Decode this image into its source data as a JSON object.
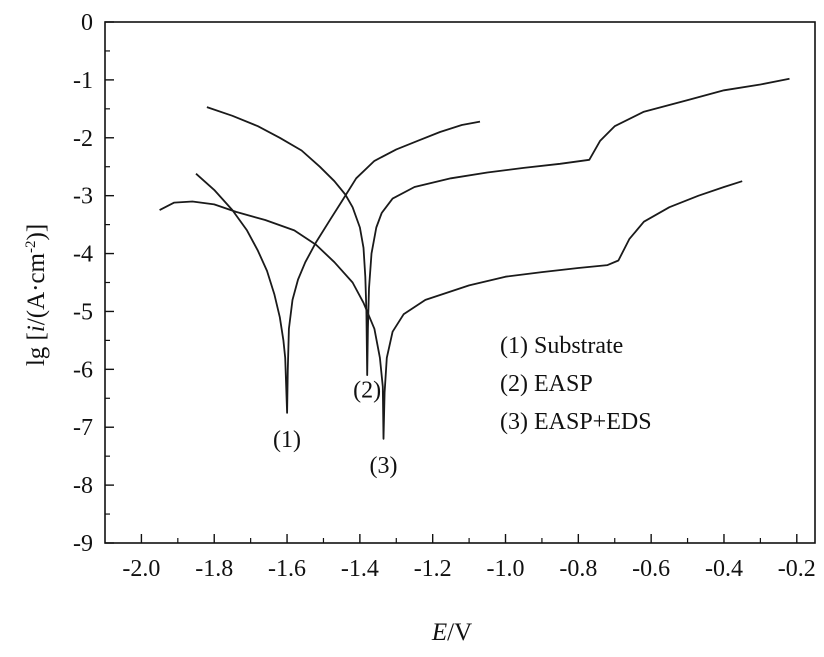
{
  "chart_data": {
    "type": "line",
    "xlabel_italic": "E",
    "xlabel_rest": "/V",
    "ylabel_pre": "lg [",
    "ylabel_italic": "i",
    "ylabel_mid": "/(A·cm",
    "ylabel_sup": "-2",
    "ylabel_post": ")]",
    "xlim": [
      -2.1,
      -0.15
    ],
    "ylim": [
      -9,
      0
    ],
    "xticks": [
      {
        "value": -2.0,
        "label": "-2.0"
      },
      {
        "value": -1.8,
        "label": "-1.8"
      },
      {
        "value": -1.6,
        "label": "-1.6"
      },
      {
        "value": -1.4,
        "label": "-1.4"
      },
      {
        "value": -1.2,
        "label": "-1.2"
      },
      {
        "value": -1.0,
        "label": "-1.0"
      },
      {
        "value": -0.8,
        "label": "-0.8"
      },
      {
        "value": -0.6,
        "label": "-0.6"
      },
      {
        "value": -0.4,
        "label": "-0.4"
      },
      {
        "value": -0.2,
        "label": "-0.2"
      }
    ],
    "yticks": [
      {
        "value": 0,
        "label": "0"
      },
      {
        "value": -1,
        "label": "-1"
      },
      {
        "value": -2,
        "label": "-2"
      },
      {
        "value": -3,
        "label": "-3"
      },
      {
        "value": -4,
        "label": "-4"
      },
      {
        "value": -5,
        "label": "-5"
      },
      {
        "value": -6,
        "label": "-6"
      },
      {
        "value": -7,
        "label": "-7"
      },
      {
        "value": -8,
        "label": "-8"
      },
      {
        "value": -9,
        "label": "-9"
      }
    ],
    "legend": [
      "(1) Substrate",
      "(2) EASP",
      "(3) EASP+EDS"
    ],
    "legend_position": "center-right",
    "series": [
      {
        "id": "1",
        "label": "(1)",
        "label_at": [
          -1.6,
          -7.2
        ],
        "points": [
          [
            -1.85,
            -2.62
          ],
          [
            -1.8,
            -2.9
          ],
          [
            -1.75,
            -3.25
          ],
          [
            -1.71,
            -3.6
          ],
          [
            -1.68,
            -3.95
          ],
          [
            -1.655,
            -4.3
          ],
          [
            -1.635,
            -4.7
          ],
          [
            -1.62,
            -5.1
          ],
          [
            -1.61,
            -5.5
          ],
          [
            -1.605,
            -5.8
          ],
          [
            -1.6,
            -6.75
          ],
          [
            -1.598,
            -6.0
          ],
          [
            -1.595,
            -5.3
          ],
          [
            -1.585,
            -4.8
          ],
          [
            -1.57,
            -4.45
          ],
          [
            -1.55,
            -4.15
          ],
          [
            -1.52,
            -3.8
          ],
          [
            -1.48,
            -3.4
          ],
          [
            -1.45,
            -3.1
          ],
          [
            -1.41,
            -2.7
          ],
          [
            -1.36,
            -2.4
          ],
          [
            -1.3,
            -2.2
          ],
          [
            -1.24,
            -2.05
          ],
          [
            -1.18,
            -1.9
          ],
          [
            -1.12,
            -1.78
          ],
          [
            -1.07,
            -1.72
          ]
        ]
      },
      {
        "id": "2",
        "label": "(2)",
        "label_at": [
          -1.38,
          -6.35
        ],
        "points": [
          [
            -1.82,
            -1.47
          ],
          [
            -1.75,
            -1.62
          ],
          [
            -1.68,
            -1.8
          ],
          [
            -1.62,
            -2.0
          ],
          [
            -1.56,
            -2.22
          ],
          [
            -1.51,
            -2.5
          ],
          [
            -1.47,
            -2.75
          ],
          [
            -1.44,
            -2.98
          ],
          [
            -1.42,
            -3.2
          ],
          [
            -1.4,
            -3.55
          ],
          [
            -1.39,
            -3.9
          ],
          [
            -1.385,
            -4.4
          ],
          [
            -1.382,
            -5.0
          ],
          [
            -1.38,
            -6.1
          ],
          [
            -1.378,
            -5.3
          ],
          [
            -1.375,
            -4.6
          ],
          [
            -1.368,
            -4.0
          ],
          [
            -1.355,
            -3.55
          ],
          [
            -1.34,
            -3.3
          ],
          [
            -1.31,
            -3.05
          ],
          [
            -1.25,
            -2.85
          ],
          [
            -1.15,
            -2.7
          ],
          [
            -1.05,
            -2.6
          ],
          [
            -0.95,
            -2.52
          ],
          [
            -0.85,
            -2.45
          ],
          [
            -0.77,
            -2.38
          ],
          [
            -0.74,
            -2.05
          ],
          [
            -0.7,
            -1.8
          ],
          [
            -0.62,
            -1.55
          ],
          [
            -0.5,
            -1.35
          ],
          [
            -0.4,
            -1.18
          ],
          [
            -0.3,
            -1.08
          ],
          [
            -0.22,
            -0.98
          ]
        ]
      },
      {
        "id": "3",
        "label": "(3)",
        "label_at": [
          -1.335,
          -7.65
        ],
        "points": [
          [
            -1.95,
            -3.25
          ],
          [
            -1.91,
            -3.12
          ],
          [
            -1.86,
            -3.1
          ],
          [
            -1.8,
            -3.15
          ],
          [
            -1.74,
            -3.28
          ],
          [
            -1.66,
            -3.42
          ],
          [
            -1.58,
            -3.6
          ],
          [
            -1.52,
            -3.85
          ],
          [
            -1.47,
            -4.15
          ],
          [
            -1.42,
            -4.5
          ],
          [
            -1.39,
            -4.85
          ],
          [
            -1.36,
            -5.3
          ],
          [
            -1.345,
            -5.8
          ],
          [
            -1.337,
            -6.3
          ],
          [
            -1.335,
            -7.2
          ],
          [
            -1.332,
            -6.4
          ],
          [
            -1.326,
            -5.8
          ],
          [
            -1.31,
            -5.35
          ],
          [
            -1.28,
            -5.05
          ],
          [
            -1.22,
            -4.8
          ],
          [
            -1.1,
            -4.55
          ],
          [
            -1.0,
            -4.4
          ],
          [
            -0.9,
            -4.32
          ],
          [
            -0.8,
            -4.25
          ],
          [
            -0.72,
            -4.2
          ],
          [
            -0.69,
            -4.12
          ],
          [
            -0.66,
            -3.75
          ],
          [
            -0.62,
            -3.45
          ],
          [
            -0.55,
            -3.2
          ],
          [
            -0.47,
            -3.0
          ],
          [
            -0.4,
            -2.85
          ],
          [
            -0.35,
            -2.75
          ]
        ]
      }
    ]
  }
}
